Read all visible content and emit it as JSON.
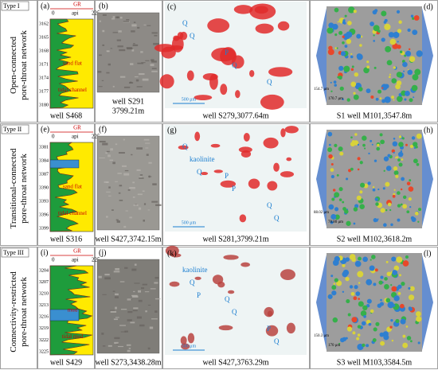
{
  "rows": [
    {
      "type": "Type I",
      "label": [
        "Open-connected",
        "pore-throat network"
      ],
      "log": {
        "panel": "(a)",
        "header": "GR",
        "scale": [
          "0",
          "api",
          "225"
        ],
        "depths": [
          "3162",
          "3165",
          "3168",
          "3171",
          "3174",
          "3177",
          "3180"
        ],
        "notes": [
          "sand flat",
          "tidal channel"
        ],
        "caption": "well S468"
      },
      "core": {
        "panel": "(b)",
        "caption": [
          "well S291",
          "3799.21m"
        ]
      },
      "thin_section": {
        "panel": "(c)",
        "minerals": [
          "Q",
          "P",
          "Q",
          "Q",
          "Q"
        ],
        "scale": "500 μm",
        "caption": "well S279,3077.64m"
      },
      "model": {
        "panel": "(d)",
        "scales": [
          "154.7 μm",
          "170.7 μm"
        ],
        "caption": "S1 well M101,3547.8m"
      }
    },
    {
      "type": "Type II",
      "label": [
        "Transitional-connected",
        "pore-throat network"
      ],
      "log": {
        "panel": "(e)",
        "header": "GR",
        "scale": [
          "0",
          "api",
          "225"
        ],
        "depths": [
          "3381",
          "3384",
          "3387",
          "3390",
          "3393",
          "3396",
          "3399"
        ],
        "notes": [
          "sand flat",
          "tidal channel"
        ],
        "caption": "well S316"
      },
      "core": {
        "panel": "(f)",
        "caption": [
          "well S427,3742.15m"
        ]
      },
      "thin_section": {
        "panel": "(g)",
        "minerals": [
          "Q",
          "P",
          "Q",
          "kaolinite",
          "P",
          "Q",
          "Q"
        ],
        "scale": "500 μm",
        "caption": "well S281,3799.21m"
      },
      "model": {
        "panel": "(h)",
        "scales": [
          "88.02 μm",
          "78.80 μm"
        ],
        "caption": "S2 well M102,3618.2m"
      }
    },
    {
      "type": "Type III",
      "label": [
        "Connectivity-restricted",
        "pore-throat network"
      ],
      "log": {
        "panel": "(i)",
        "header": "GR",
        "scale": [
          "0",
          "api",
          "225"
        ],
        "depths": [
          "3204",
          "3207",
          "3210",
          "3213",
          "3216",
          "3219",
          "3222",
          "3225"
        ],
        "notes": [
          "mud",
          "tidal mud"
        ],
        "caption": "well S429"
      },
      "core": {
        "panel": "(j)",
        "caption": [
          "well S273,3438.28m"
        ]
      },
      "thin_section": {
        "panel": "(k)",
        "minerals": [
          "kaolinite",
          "Q",
          "P",
          "Q",
          "Q",
          "Q",
          "P"
        ],
        "scale": "500 μm",
        "caption": "well S427,3763.29m"
      },
      "model": {
        "panel": "(l)",
        "scales": [
          "150.3 μm",
          "170 μm"
        ],
        "caption": "S3 well M103,3584.5m"
      }
    }
  ]
}
